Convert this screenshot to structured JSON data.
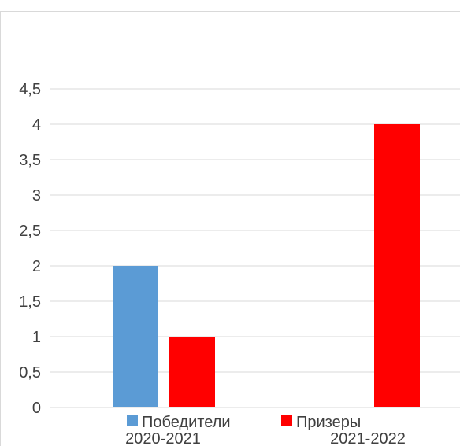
{
  "chart_data": {
    "type": "bar",
    "categories": [
      "2020-2021",
      "2021-2022"
    ],
    "series": [
      {
        "name": "Победители",
        "values": [
          2,
          0
        ],
        "color": "#5b9bd5"
      },
      {
        "name": "Призеры",
        "values": [
          1,
          4
        ],
        "color": "#ff0000"
      }
    ],
    "yticks": [
      "0",
      "0,5",
      "1",
      "1,5",
      "2",
      "2,5",
      "3",
      "3,5",
      "4",
      "4,5"
    ],
    "ylim": [
      0,
      4.5
    ],
    "grid": true,
    "legend_position": "bottom",
    "gridline_color": "#d9d9d9",
    "border_color": "#d9d9d9"
  }
}
